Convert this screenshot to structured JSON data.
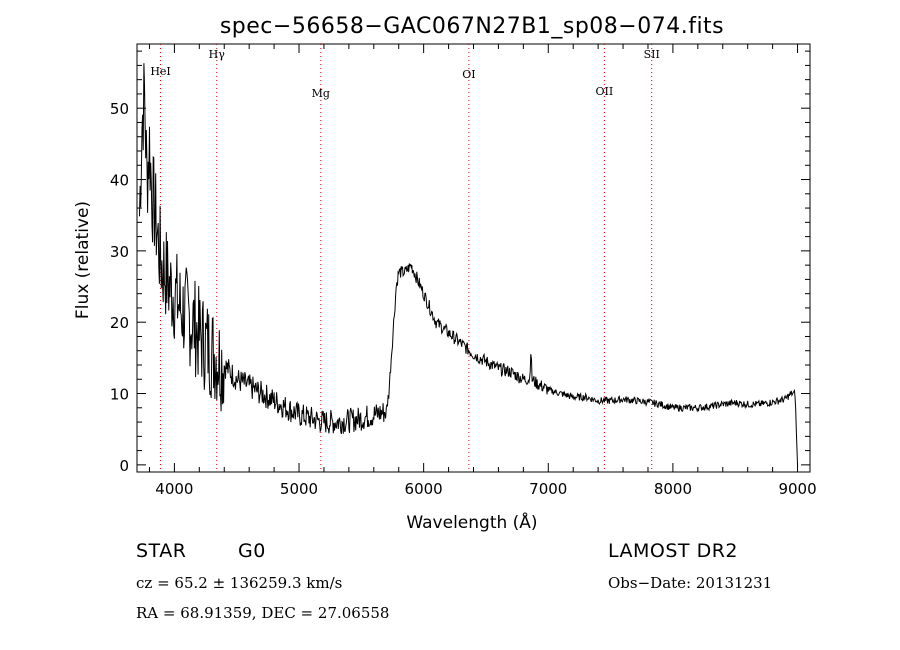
{
  "chart_data": {
    "type": "line",
    "title": "spec−56658−GAC067N27B1_sp08−074.fits",
    "xlabel": "Wavelength (Å)",
    "ylabel": "Flux (relative)",
    "xlim": [
      3700,
      9100
    ],
    "ylim": [
      -1,
      59
    ],
    "xticks": [
      4000,
      5000,
      6000,
      7000,
      8000,
      9000
    ],
    "yticks": [
      0,
      10,
      20,
      30,
      40,
      50
    ],
    "grid": false,
    "lines": [
      {
        "label": "HeI",
        "x": 3889,
        "color": "#d00000"
      },
      {
        "label": "Hγ",
        "x": 4340,
        "color": "#d00000"
      },
      {
        "label": "Mg",
        "x": 5175,
        "color": "#d00000"
      },
      {
        "label": "OI",
        "x": 6363,
        "color": "#d00000"
      },
      {
        "label": "OII",
        "x": 7450,
        "color": "#d00000"
      },
      {
        "label": "SII",
        "x": 7830,
        "color": "#d00000"
      }
    ],
    "series": [
      {
        "x": [
          3720,
          3740,
          3760,
          3780,
          3800,
          3820,
          3840,
          3860,
          3880,
          3900,
          3930,
          3960,
          4000,
          4050,
          4100,
          4150,
          4200,
          4250,
          4300,
          4350,
          4400,
          4500,
          4600,
          4700,
          4800,
          4900,
          5000,
          5100,
          5200,
          5300,
          5400,
          5500,
          5600,
          5700,
          5720,
          5740,
          5760,
          5780,
          5800,
          5850,
          5900,
          5950,
          6000,
          6050,
          6100,
          6200,
          6300,
          6400,
          6500,
          6600,
          6700,
          6800,
          6850,
          6860,
          6870,
          6900,
          7000,
          7100,
          7200,
          7300,
          7400,
          7500,
          7600,
          7700,
          7800,
          7900,
          8000,
          8100,
          8200,
          8300,
          8400,
          8500,
          8600,
          8700,
          8800,
          8900,
          8950,
          8980,
          9000
        ],
        "y": [
          35,
          48,
          52,
          40,
          45,
          38,
          36,
          33,
          30,
          28,
          27,
          25,
          24,
          22,
          21,
          20,
          18,
          17,
          16,
          15,
          14,
          12,
          11,
          10,
          9,
          8,
          7,
          6.5,
          6,
          6,
          6.2,
          6.5,
          7,
          7.5,
          10,
          15,
          20,
          25,
          27,
          27,
          28,
          26,
          24,
          22,
          20,
          18.5,
          17,
          15.5,
          14.5,
          13.5,
          13,
          12,
          12,
          16,
          12,
          11.5,
          10.5,
          10,
          9.5,
          9.5,
          9,
          9,
          9.2,
          9,
          8.8,
          8.5,
          8,
          8,
          8,
          8.2,
          8.5,
          8.7,
          8.5,
          8.5,
          8.8,
          9.2,
          10,
          10,
          0
        ],
        "color": "#000000"
      }
    ]
  },
  "footer": {
    "object_type": "STAR",
    "subclass": "G0",
    "survey": "LAMOST DR2",
    "cz": "cz = 65.2 ± 136259.3 km/s",
    "obs_date": "Obs−Date: 20131231",
    "coords": "RA =  68.91359, DEC =  27.06558"
  }
}
